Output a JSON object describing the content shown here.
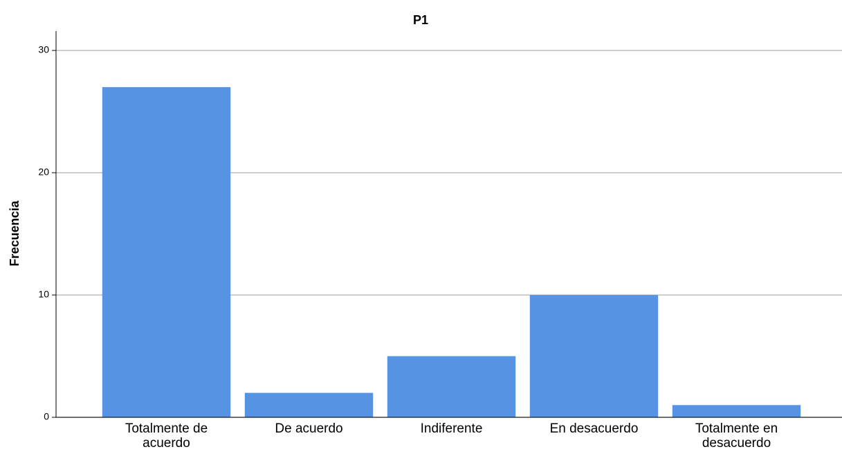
{
  "chart_data": {
    "type": "bar",
    "title": "P1",
    "y_label": "Frecuencia",
    "categories": [
      "Totalmente de acuerdo",
      "De acuerdo",
      "Indiferente",
      "En desacuerdo",
      "Totalmente en desacuerdo"
    ],
    "values": [
      27,
      2,
      5,
      10,
      1
    ],
    "color": "#5694e3",
    "ylim": [
      0,
      30
    ],
    "yticks": [
      0,
      10,
      20,
      30
    ],
    "grid": true
  }
}
